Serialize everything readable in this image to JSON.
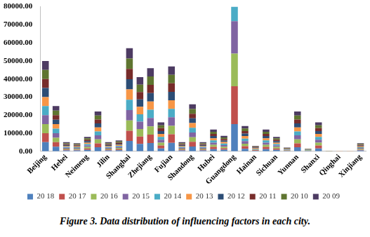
{
  "chart_data": {
    "type": "bar",
    "title": "Figure 3. Data distribution of influencing factors in each city.",
    "categories": [
      "Beijing",
      null,
      "Hebei",
      null,
      "Neimeng",
      null,
      "Jilin",
      null,
      "Shanghai",
      null,
      "Zhejiang",
      null,
      "Fujian",
      null,
      "Shandong",
      null,
      "Hubei",
      null,
      "Guangdong",
      null,
      "Hainan",
      null,
      "Sichuan",
      null,
      "Yunnan",
      null,
      "Shanxi",
      null,
      "Qinghai",
      null,
      "Xinjiang"
    ],
    "series": [
      {
        "name": "20 18",
        "color": "#4F81BD",
        "values": [
          5000,
          2500,
          500,
          450,
          800,
          2200,
          500,
          600,
          5700,
          4100,
          4600,
          1600,
          4700,
          500,
          2600,
          500,
          1200,
          850,
          15000,
          1400,
          300,
          1200,
          800,
          200,
          2200,
          150,
          1600,
          20,
          10,
          10,
          450
        ]
      },
      {
        "name": "20 17",
        "color": "#C0504D",
        "values": [
          5000,
          2500,
          500,
          450,
          800,
          2200,
          500,
          600,
          5700,
          4100,
          4600,
          1600,
          4700,
          500,
          2600,
          500,
          1200,
          850,
          21000,
          1400,
          300,
          1200,
          800,
          200,
          2200,
          150,
          1600,
          20,
          10,
          10,
          450
        ]
      },
      {
        "name": "20 16",
        "color": "#9BBB59",
        "values": [
          5000,
          2500,
          500,
          450,
          800,
          2200,
          500,
          600,
          5700,
          4100,
          4600,
          1600,
          4700,
          500,
          2600,
          500,
          1200,
          850,
          18000,
          1400,
          300,
          1200,
          800,
          200,
          2200,
          150,
          1600,
          20,
          10,
          10,
          450
        ]
      },
      {
        "name": "20 15",
        "color": "#8064A2",
        "values": [
          5000,
          2500,
          500,
          450,
          800,
          2200,
          500,
          600,
          5700,
          4100,
          4600,
          1600,
          4700,
          500,
          2600,
          500,
          1200,
          850,
          18000,
          1400,
          300,
          1200,
          800,
          200,
          2200,
          150,
          1600,
          20,
          10,
          10,
          450
        ]
      },
      {
        "name": "20 14",
        "color": "#4BACC6",
        "values": [
          5000,
          2500,
          500,
          450,
          800,
          2200,
          500,
          600,
          5700,
          4100,
          4600,
          1600,
          4700,
          500,
          2600,
          500,
          1200,
          850,
          8000,
          1400,
          300,
          1200,
          800,
          200,
          2200,
          150,
          1600,
          20,
          10,
          10,
          450
        ]
      },
      {
        "name": "20 13",
        "color": "#F79646",
        "values": [
          5000,
          2500,
          500,
          450,
          800,
          2200,
          500,
          600,
          5700,
          4100,
          4600,
          1600,
          4700,
          500,
          2600,
          500,
          1200,
          850,
          0,
          1400,
          300,
          1200,
          800,
          200,
          2200,
          150,
          1600,
          20,
          10,
          10,
          450
        ]
      },
      {
        "name": "20 12",
        "color": "#2C4D75",
        "values": [
          5000,
          2500,
          500,
          450,
          800,
          2200,
          500,
          600,
          5700,
          4100,
          4600,
          1600,
          4700,
          500,
          2600,
          500,
          1200,
          850,
          0,
          1400,
          300,
          1200,
          800,
          200,
          2200,
          150,
          1600,
          20,
          10,
          10,
          450
        ]
      },
      {
        "name": "20 11",
        "color": "#772C2A",
        "values": [
          5000,
          2500,
          500,
          450,
          800,
          2200,
          500,
          600,
          5700,
          4100,
          4600,
          1600,
          4700,
          500,
          2600,
          500,
          1200,
          850,
          0,
          1400,
          300,
          1200,
          800,
          200,
          2200,
          150,
          1600,
          20,
          10,
          10,
          450
        ]
      },
      {
        "name": "20 10",
        "color": "#5F7530",
        "values": [
          5000,
          2500,
          500,
          450,
          800,
          2200,
          500,
          600,
          5700,
          4100,
          4600,
          1600,
          4700,
          500,
          2600,
          500,
          1200,
          850,
          0,
          1400,
          300,
          1200,
          800,
          200,
          2200,
          150,
          1600,
          20,
          10,
          10,
          450
        ]
      },
      {
        "name": "20 09",
        "color": "#4D3B62",
        "values": [
          5000,
          2500,
          500,
          450,
          800,
          2200,
          500,
          600,
          5700,
          4100,
          4600,
          1600,
          4700,
          500,
          2600,
          500,
          1200,
          850,
          0,
          1400,
          300,
          1200,
          800,
          200,
          2200,
          150,
          1600,
          20,
          10,
          10,
          450
        ]
      }
    ],
    "ylim": [
      0,
      80000
    ],
    "yticks": [
      {
        "value": 0,
        "label": "0.00"
      },
      {
        "value": 10000,
        "label": "10000.00"
      },
      {
        "value": 20000,
        "label": "20000.00"
      },
      {
        "value": 30000,
        "label": "30000.00"
      },
      {
        "value": 40000,
        "label": "40000.00"
      },
      {
        "value": 50000,
        "label": "50000.00"
      },
      {
        "value": 60000,
        "label": "60000.00"
      },
      {
        "value": 70000,
        "label": "70000.00"
      },
      {
        "value": 80000,
        "label": "80000.00"
      }
    ],
    "stacked": true,
    "grid": false,
    "legend": "bottom"
  }
}
